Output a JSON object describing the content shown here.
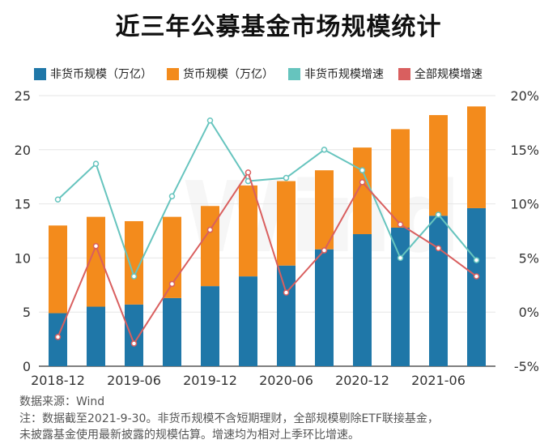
{
  "chart_data": {
    "type": "bar",
    "title": "近三年公募基金市场规模统计",
    "x": [
      "2018-12",
      "2019-03",
      "2019-06",
      "2019-09",
      "2019-12",
      "2020-03",
      "2020-06",
      "2020-09",
      "2020-12",
      "2021-03",
      "2021-06",
      "2021-09"
    ],
    "x_tick_labels": [
      "2018-12",
      "2019-06",
      "2019-12",
      "2020-06",
      "2020-12",
      "2021-06"
    ],
    "y_left": {
      "ylim": [
        0,
        25
      ],
      "ticks": [
        "0",
        "5",
        "10",
        "15",
        "20",
        "25"
      ]
    },
    "y_right": {
      "ylim": [
        -5,
        20
      ],
      "ticks": [
        "-5%",
        "0%",
        "5%",
        "10%",
        "15%",
        "20%"
      ]
    },
    "stacked": true,
    "grid": true,
    "legend_position": "top",
    "series": [
      {
        "name": "非货币规模（万亿）",
        "type": "bar",
        "axis": "left",
        "color": "#1f77a8",
        "values": [
          4.9,
          5.5,
          5.7,
          6.3,
          7.4,
          8.3,
          9.3,
          10.8,
          12.2,
          12.8,
          13.9,
          14.6
        ]
      },
      {
        "name": "货币规模（万亿）",
        "type": "bar",
        "axis": "left",
        "color": "#f38b1c",
        "values": [
          8.1,
          8.3,
          7.7,
          7.5,
          7.4,
          8.4,
          7.8,
          7.3,
          8.0,
          9.1,
          9.3,
          9.4
        ]
      },
      {
        "name": "非货币规模增速",
        "type": "line",
        "axis": "right",
        "color": "#66c4be",
        "values": [
          10.4,
          13.7,
          3.3,
          10.7,
          17.7,
          12.1,
          12.4,
          15.0,
          13.1,
          5.0,
          9.0,
          4.8
        ]
      },
      {
        "name": "全部规模增速",
        "type": "line",
        "axis": "right",
        "color": "#d95f5f",
        "values": [
          -2.3,
          6.1,
          -2.9,
          2.6,
          7.6,
          12.9,
          1.8,
          5.7,
          12.0,
          8.1,
          5.9,
          3.3
        ]
      }
    ]
  },
  "source": "数据来源：Wind",
  "note_line1": "注：数据截至2021-9-30。非货币规模不含短期理财，全部规模剔除ETF联接基金，",
  "note_line2": "未披露基金使用最新披露的规模估算。增速均为相对上季环比增速。",
  "watermark": "Wind"
}
